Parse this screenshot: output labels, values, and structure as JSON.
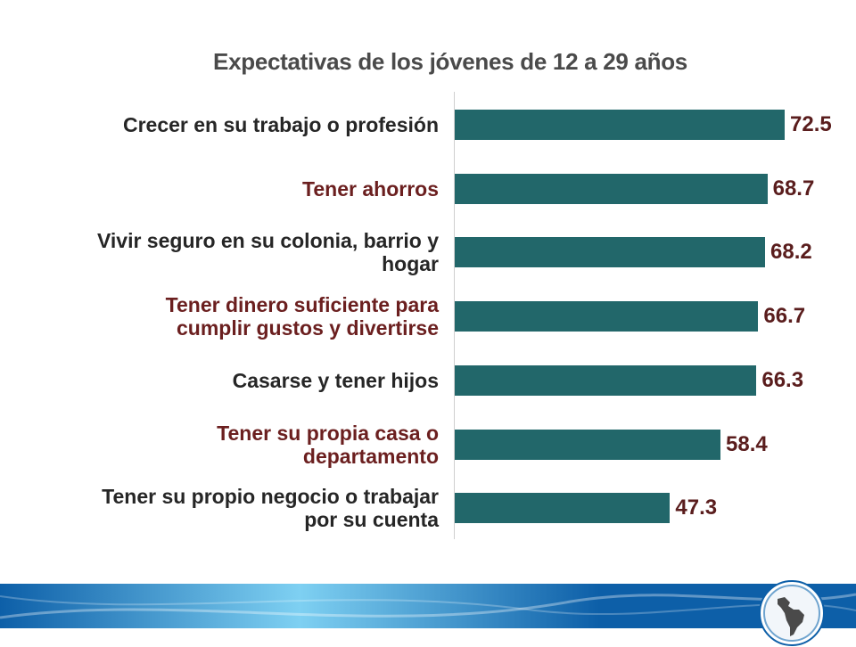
{
  "colors": {
    "bar": "#22676a",
    "label_dark": "#262626",
    "label_accent": "#6b1f1f",
    "value_label": "#5a1d1d",
    "title": "#4a4a4a",
    "band_dark": "#0d5fa8",
    "band_light": "#7ed0f2"
  },
  "icons": {
    "seal": "latin-america-map-seal-icon"
  },
  "chart_data": {
    "type": "bar",
    "orientation": "horizontal",
    "title": "Expectativas de los jóvenes de 12 a 29 años",
    "xlim": [
      0,
      75
    ],
    "grid": false,
    "legend": "none",
    "categories": [
      "Crecer en su trabajo o profesión",
      "Tener ahorros",
      "Vivir seguro en su colonia, barrio y hogar",
      "Tener dinero suficiente para cumplir gustos y divertirse",
      "Casarse y tener hijos",
      "Tener su propia casa o departamento",
      "Tener su propio negocio o trabajar por su cuenta"
    ],
    "category_lines": [
      [
        "Crecer en su trabajo o profesión"
      ],
      [
        "Tener ahorros"
      ],
      [
        "Vivir seguro en su colonia, barrio y",
        "hogar"
      ],
      [
        "Tener dinero suficiente para",
        "cumplir  gustos y divertirse"
      ],
      [
        "Casarse y tener hijos"
      ],
      [
        "Tener su propia casa o",
        "departamento"
      ],
      [
        "Tener su propio negocio o trabajar",
        "por su cuenta"
      ]
    ],
    "label_styles": [
      "dark",
      "accent",
      "dark",
      "accent",
      "dark",
      "accent",
      "dark"
    ],
    "values": [
      72.5,
      68.7,
      68.2,
      66.7,
      66.3,
      58.4,
      47.3
    ],
    "value_labels": [
      "72.5",
      "68.7",
      "68.2",
      "66.7",
      "66.3",
      "58.4",
      "47.3"
    ]
  }
}
